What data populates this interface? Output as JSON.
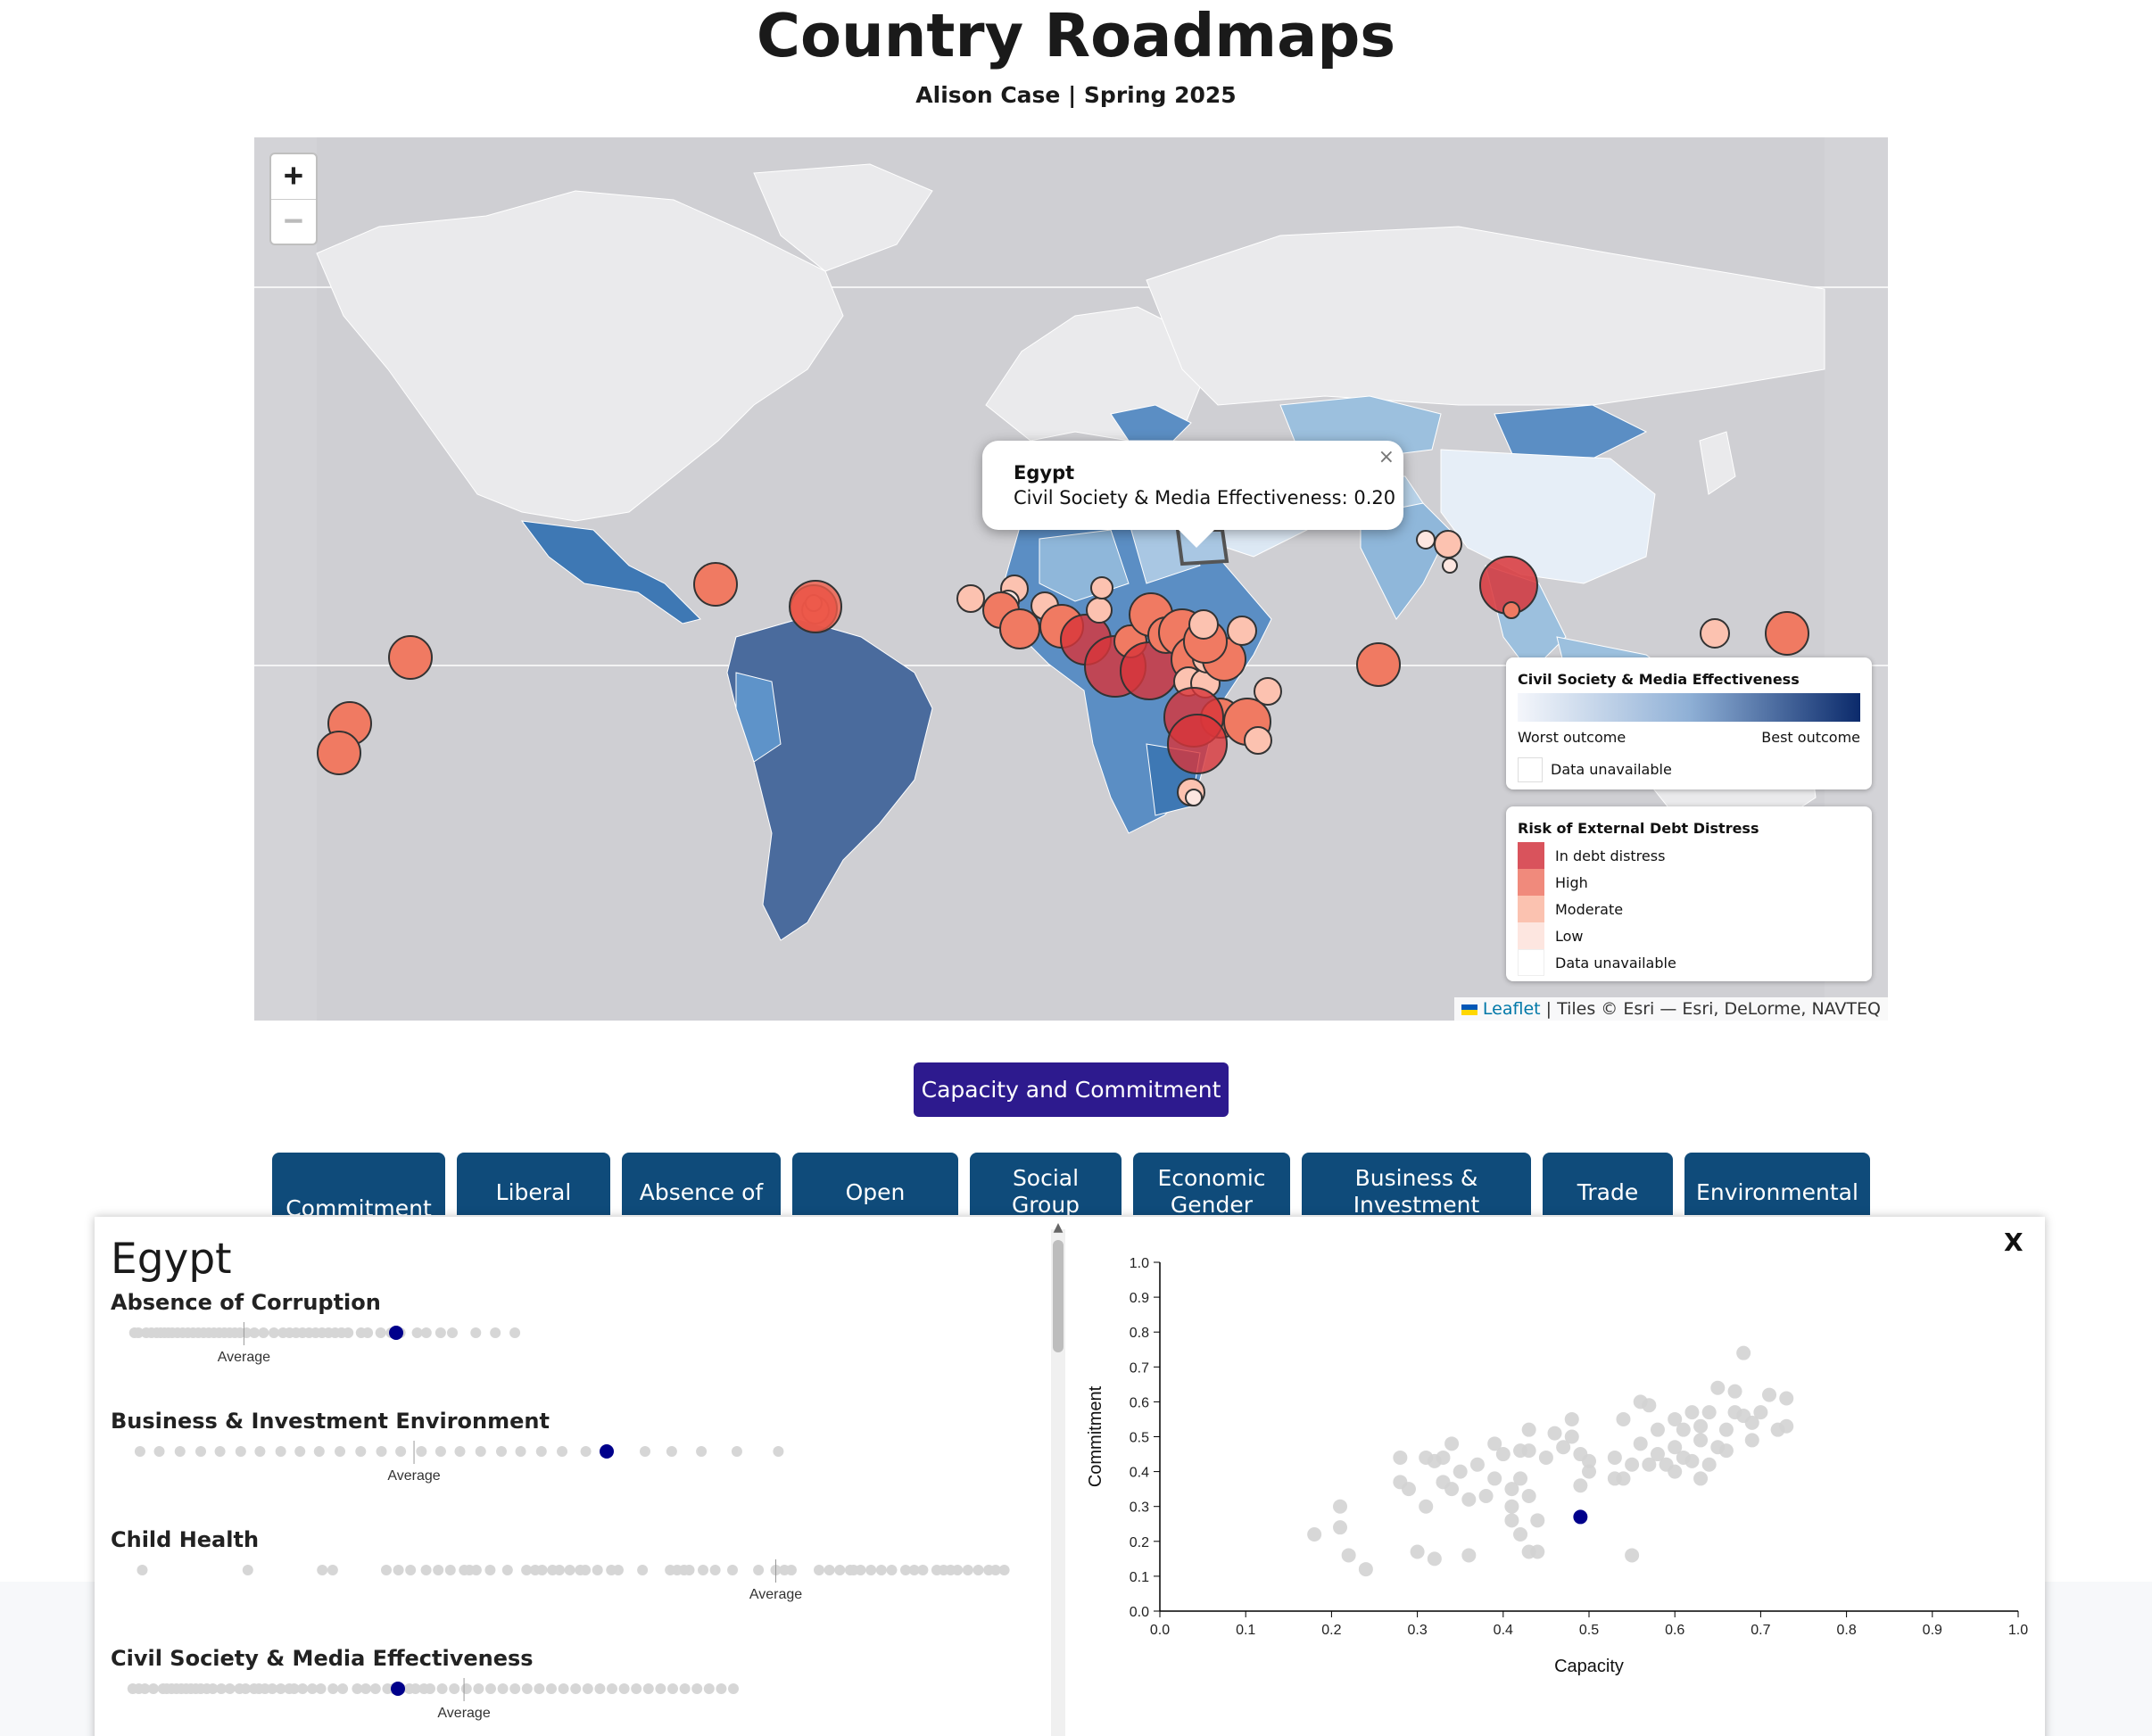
{
  "header": {
    "title": "Country Roadmaps",
    "subtitle": "Alison Case | Spring 2025"
  },
  "map": {
    "zoom_in_label": "+",
    "zoom_out_label": "−",
    "popup": {
      "country": "Egypt",
      "text": "Civil Society & Media Effectiveness: 0.20",
      "close": "×"
    },
    "legend_effectiveness": {
      "title": "Civil Society & Media Effectiveness",
      "worst": "Worst outcome",
      "best": "Best outcome",
      "unavailable": "Data unavailable"
    },
    "legend_debt": {
      "title": "Risk of External Debt Distress",
      "items": [
        {
          "label": "In debt distress",
          "color": "#d9535c"
        },
        {
          "label": "High",
          "color": "#f08a7c"
        },
        {
          "label": "Moderate",
          "color": "#fbc2b0"
        },
        {
          "label": "Low",
          "color": "#fde6e0"
        },
        {
          "label": "Data unavailable",
          "color": "#ffffff"
        }
      ]
    },
    "attribution": {
      "leaflet": "Leaflet",
      "tiles": "| Tiles © Esri — Esri, DeLorme, NAVTEQ"
    }
  },
  "main_button": "Capacity and Commitment",
  "tabs": [
    {
      "label": "Commitment"
    },
    {
      "label": "Liberal"
    },
    {
      "label": "Absence of"
    },
    {
      "label": "Open"
    },
    {
      "label": "Social Group"
    },
    {
      "label": "Economic Gender"
    },
    {
      "label": "Business & Investment"
    },
    {
      "label": "Trade"
    },
    {
      "label": "Environmental"
    }
  ],
  "panel": {
    "country": "Egypt",
    "close": "X",
    "average_label": "Average",
    "indicators": [
      {
        "name": "Absence of Corruption"
      },
      {
        "name": "Business & Investment Environment"
      },
      {
        "name": "Child Health"
      },
      {
        "name": "Civil Society & Media Effectiveness"
      }
    ]
  },
  "chart_data": {
    "type": "scatter",
    "xlabel": "Capacity",
    "ylabel": "Commitment",
    "xlim": [
      0,
      1
    ],
    "ylim": [
      0,
      1
    ],
    "x_ticks": [
      "0.0",
      "0.1",
      "0.2",
      "0.3",
      "0.4",
      "0.5",
      "0.6",
      "0.7",
      "0.8",
      "0.9",
      "1.0"
    ],
    "y_ticks": [
      "0.0",
      "0.1",
      "0.2",
      "0.3",
      "0.4",
      "0.5",
      "0.6",
      "0.7",
      "0.8",
      "0.9",
      "1.0"
    ],
    "highlight": {
      "x": 0.49,
      "y": 0.27
    },
    "points": [
      [
        0.18,
        0.22
      ],
      [
        0.21,
        0.24
      ],
      [
        0.21,
        0.3
      ],
      [
        0.22,
        0.16
      ],
      [
        0.24,
        0.12
      ],
      [
        0.28,
        0.37
      ],
      [
        0.28,
        0.44
      ],
      [
        0.29,
        0.35
      ],
      [
        0.3,
        0.17
      ],
      [
        0.31,
        0.3
      ],
      [
        0.31,
        0.44
      ],
      [
        0.32,
        0.43
      ],
      [
        0.32,
        0.15
      ],
      [
        0.33,
        0.44
      ],
      [
        0.33,
        0.37
      ],
      [
        0.34,
        0.35
      ],
      [
        0.34,
        0.48
      ],
      [
        0.35,
        0.4
      ],
      [
        0.36,
        0.16
      ],
      [
        0.36,
        0.32
      ],
      [
        0.37,
        0.42
      ],
      [
        0.38,
        0.33
      ],
      [
        0.39,
        0.48
      ],
      [
        0.39,
        0.38
      ],
      [
        0.4,
        0.45
      ],
      [
        0.41,
        0.3
      ],
      [
        0.41,
        0.26
      ],
      [
        0.41,
        0.35
      ],
      [
        0.42,
        0.46
      ],
      [
        0.42,
        0.38
      ],
      [
        0.42,
        0.22
      ],
      [
        0.43,
        0.52
      ],
      [
        0.43,
        0.46
      ],
      [
        0.43,
        0.33
      ],
      [
        0.43,
        0.17
      ],
      [
        0.44,
        0.17
      ],
      [
        0.44,
        0.26
      ],
      [
        0.45,
        0.44
      ],
      [
        0.46,
        0.51
      ],
      [
        0.47,
        0.47
      ],
      [
        0.48,
        0.5
      ],
      [
        0.48,
        0.55
      ],
      [
        0.49,
        0.45
      ],
      [
        0.49,
        0.36
      ],
      [
        0.5,
        0.43
      ],
      [
        0.5,
        0.4
      ],
      [
        0.53,
        0.38
      ],
      [
        0.53,
        0.44
      ],
      [
        0.54,
        0.55
      ],
      [
        0.54,
        0.38
      ],
      [
        0.55,
        0.16
      ],
      [
        0.55,
        0.42
      ],
      [
        0.56,
        0.6
      ],
      [
        0.56,
        0.48
      ],
      [
        0.57,
        0.42
      ],
      [
        0.57,
        0.59
      ],
      [
        0.58,
        0.45
      ],
      [
        0.58,
        0.52
      ],
      [
        0.59,
        0.42
      ],
      [
        0.6,
        0.55
      ],
      [
        0.6,
        0.4
      ],
      [
        0.6,
        0.47
      ],
      [
        0.61,
        0.44
      ],
      [
        0.61,
        0.52
      ],
      [
        0.62,
        0.57
      ],
      [
        0.62,
        0.43
      ],
      [
        0.63,
        0.49
      ],
      [
        0.63,
        0.38
      ],
      [
        0.63,
        0.53
      ],
      [
        0.64,
        0.57
      ],
      [
        0.64,
        0.42
      ],
      [
        0.65,
        0.47
      ],
      [
        0.65,
        0.64
      ],
      [
        0.66,
        0.52
      ],
      [
        0.66,
        0.46
      ],
      [
        0.67,
        0.63
      ],
      [
        0.67,
        0.57
      ],
      [
        0.68,
        0.56
      ],
      [
        0.68,
        0.74
      ],
      [
        0.69,
        0.49
      ],
      [
        0.69,
        0.54
      ],
      [
        0.7,
        0.57
      ],
      [
        0.71,
        0.62
      ],
      [
        0.72,
        0.52
      ],
      [
        0.73,
        0.53
      ],
      [
        0.73,
        0.61
      ]
    ]
  }
}
